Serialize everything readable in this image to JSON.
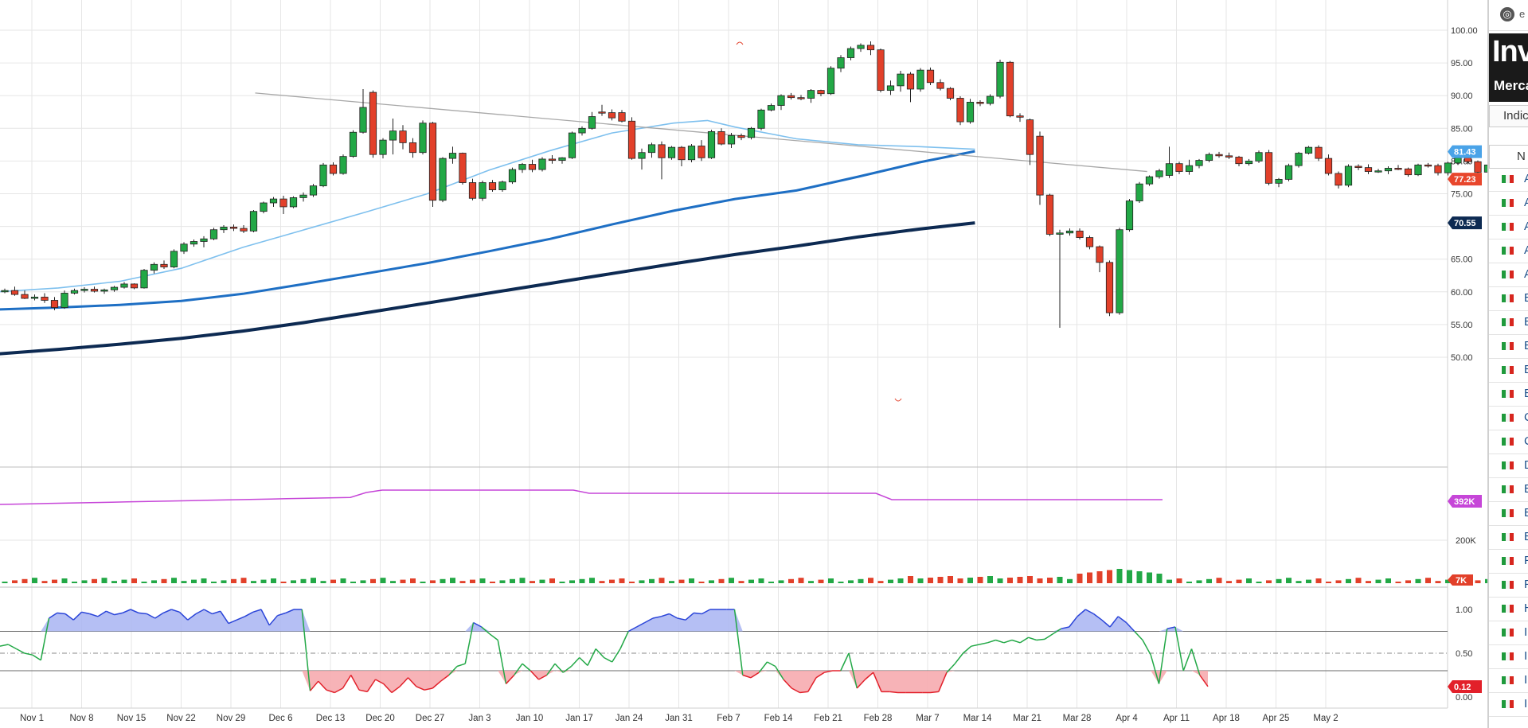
{
  "chart_data": {
    "type": "candlestick",
    "x_tick_labels": [
      "Nov 1",
      "Nov 8",
      "Nov 15",
      "Nov 22",
      "Nov 29",
      "Dec 6",
      "Dec 13",
      "Dec 20",
      "Dec 27",
      "Jan 3",
      "Jan 10",
      "Jan 17",
      "Jan 24",
      "Jan 31",
      "Feb 7",
      "Feb 14",
      "Feb 21",
      "Feb 28",
      "Mar 7",
      "Mar 14",
      "Mar 21",
      "Mar 28",
      "Apr 4",
      "Apr 11",
      "Apr 18",
      "Apr 25",
      "May 2"
    ],
    "price_axis": {
      "ylim": [
        47.5,
        101
      ],
      "ticks": [
        "100.00",
        "95.00",
        "90.00",
        "85.00",
        "80.00",
        "75.00",
        "65.00",
        "60.00",
        "55.00",
        "50.00"
      ]
    },
    "price_badges": [
      {
        "label": "81.43",
        "value": 81.43,
        "color": "#4aa3e8"
      },
      {
        "label": "77.23",
        "value": 77.23,
        "color": "#e8462c"
      },
      {
        "label": "70.55",
        "value": 70.55,
        "color": "#0d2a52"
      }
    ],
    "candles": [
      [
        60.0,
        60.5,
        59.8,
        60.2
      ],
      [
        60.2,
        60.8,
        59.4,
        59.6
      ],
      [
        59.6,
        60.2,
        58.9,
        59.0
      ],
      [
        59.0,
        59.6,
        58.7,
        59.2
      ],
      [
        59.2,
        59.8,
        58.3,
        58.7
      ],
      [
        58.7,
        59.2,
        57.2,
        57.6
      ],
      [
        57.6,
        60.2,
        57.4,
        59.8
      ],
      [
        59.8,
        60.5,
        59.6,
        60.2
      ],
      [
        60.2,
        60.7,
        59.9,
        60.4
      ],
      [
        60.4,
        60.8,
        59.9,
        60.1
      ],
      [
        60.1,
        60.5,
        59.7,
        60.3
      ],
      [
        60.3,
        60.9,
        60.0,
        60.7
      ],
      [
        60.7,
        61.5,
        60.5,
        61.2
      ],
      [
        61.2,
        61.3,
        60.4,
        60.6
      ],
      [
        60.6,
        63.5,
        60.5,
        63.3
      ],
      [
        63.3,
        64.5,
        62.8,
        64.2
      ],
      [
        64.2,
        64.8,
        63.5,
        63.8
      ],
      [
        63.8,
        66.5,
        63.6,
        66.2
      ],
      [
        66.2,
        67.6,
        65.8,
        67.3
      ],
      [
        67.3,
        68.0,
        66.9,
        67.7
      ],
      [
        67.7,
        68.5,
        66.8,
        68.1
      ],
      [
        68.1,
        69.8,
        67.9,
        69.5
      ],
      [
        69.5,
        70.2,
        69.0,
        69.9
      ],
      [
        69.9,
        70.3,
        69.3,
        69.7
      ],
      [
        69.7,
        70.2,
        69.0,
        69.3
      ],
      [
        69.3,
        72.5,
        69.1,
        72.3
      ],
      [
        72.3,
        73.8,
        72.0,
        73.6
      ],
      [
        73.6,
        74.5,
        73.0,
        74.2
      ],
      [
        74.2,
        74.7,
        71.9,
        73.0
      ],
      [
        73.0,
        74.6,
        72.8,
        74.4
      ],
      [
        74.4,
        75.2,
        73.8,
        74.8
      ],
      [
        74.8,
        76.5,
        74.5,
        76.2
      ],
      [
        76.2,
        79.7,
        76.0,
        79.4
      ],
      [
        79.4,
        79.8,
        77.8,
        78.1
      ],
      [
        78.1,
        81.0,
        77.9,
        80.7
      ],
      [
        80.7,
        84.7,
        80.5,
        84.4
      ],
      [
        84.4,
        91.0,
        84.2,
        88.2
      ],
      [
        90.5,
        90.8,
        80.5,
        81.0
      ],
      [
        81.0,
        83.5,
        80.4,
        83.2
      ],
      [
        83.2,
        86.5,
        81.0,
        84.6
      ],
      [
        84.6,
        85.5,
        81.8,
        82.8
      ],
      [
        82.8,
        83.5,
        80.5,
        81.3
      ],
      [
        81.3,
        86.2,
        81.0,
        85.8
      ],
      [
        85.8,
        86.0,
        73.0,
        74.0
      ],
      [
        74.0,
        80.6,
        73.7,
        80.4
      ],
      [
        80.4,
        82.2,
        79.6,
        81.2
      ],
      [
        81.2,
        81.3,
        76.4,
        76.7
      ],
      [
        76.7,
        77.3,
        74.0,
        74.3
      ],
      [
        74.3,
        77.0,
        73.9,
        76.7
      ],
      [
        76.7,
        77.1,
        75.3,
        75.6
      ],
      [
        75.6,
        77.0,
        75.3,
        76.8
      ],
      [
        76.8,
        79.0,
        76.5,
        78.7
      ],
      [
        78.7,
        79.7,
        78.2,
        79.5
      ],
      [
        79.5,
        80.2,
        78.3,
        78.7
      ],
      [
        78.7,
        80.6,
        78.4,
        80.3
      ],
      [
        80.3,
        80.9,
        79.6,
        80.1
      ],
      [
        80.1,
        80.6,
        79.6,
        80.5
      ],
      [
        80.5,
        84.5,
        80.3,
        84.3
      ],
      [
        84.3,
        85.3,
        83.9,
        85.0
      ],
      [
        85.0,
        87.5,
        84.8,
        86.8
      ],
      [
        87.5,
        88.6,
        86.9,
        87.4
      ],
      [
        87.4,
        87.9,
        86.2,
        86.6
      ],
      [
        87.4,
        87.8,
        85.9,
        86.1
      ],
      [
        86.1,
        86.7,
        80.2,
        80.4
      ],
      [
        80.4,
        81.9,
        78.7,
        81.3
      ],
      [
        81.3,
        82.8,
        80.5,
        82.5
      ],
      [
        82.5,
        83.0,
        77.2,
        80.5
      ],
      [
        80.5,
        82.3,
        80.2,
        82.1
      ],
      [
        82.1,
        82.3,
        79.2,
        80.2
      ],
      [
        80.2,
        82.6,
        79.8,
        82.3
      ],
      [
        82.3,
        83.2,
        80.0,
        80.5
      ],
      [
        80.5,
        84.8,
        80.3,
        84.5
      ],
      [
        84.5,
        85.0,
        82.4,
        82.6
      ],
      [
        82.6,
        84.3,
        82.0,
        83.9
      ],
      [
        83.9,
        84.2,
        83.2,
        83.6
      ],
      [
        83.6,
        85.2,
        83.3,
        85.0
      ],
      [
        85.0,
        88.0,
        84.7,
        87.8
      ],
      [
        87.8,
        88.8,
        87.6,
        88.5
      ],
      [
        88.5,
        90.2,
        87.8,
        90.0
      ],
      [
        90.0,
        90.4,
        89.4,
        89.7
      ],
      [
        89.7,
        90.1,
        89.3,
        89.6
      ],
      [
        89.6,
        91.0,
        88.9,
        90.8
      ],
      [
        90.8,
        90.9,
        89.9,
        90.3
      ],
      [
        90.3,
        94.5,
        90.1,
        94.2
      ],
      [
        94.2,
        96.2,
        93.6,
        95.8
      ],
      [
        95.8,
        97.5,
        95.4,
        97.2
      ],
      [
        97.2,
        98.0,
        96.7,
        97.7
      ],
      [
        97.7,
        98.3,
        96.2,
        97.0
      ],
      [
        97.0,
        97.2,
        90.5,
        90.8
      ],
      [
        90.8,
        92.3,
        90.1,
        91.5
      ],
      [
        91.5,
        93.8,
        90.6,
        93.3
      ],
      [
        93.3,
        93.6,
        89.0,
        91.0
      ],
      [
        91.0,
        94.2,
        90.6,
        93.9
      ],
      [
        93.9,
        94.3,
        91.6,
        92.0
      ],
      [
        92.0,
        92.5,
        90.8,
        91.1
      ],
      [
        91.1,
        91.3,
        89.3,
        89.6
      ],
      [
        89.6,
        89.9,
        85.5,
        86.0
      ],
      [
        86.0,
        89.5,
        85.7,
        89.0
      ],
      [
        89.0,
        89.3,
        88.4,
        88.8
      ],
      [
        88.8,
        90.2,
        88.5,
        89.9
      ],
      [
        89.9,
        95.5,
        89.6,
        95.1
      ],
      [
        95.1,
        95.3,
        86.7,
        86.9
      ],
      [
        86.9,
        87.3,
        86.0,
        86.7
      ],
      [
        86.3,
        86.5,
        79.4,
        81.0
      ],
      [
        83.8,
        84.5,
        73.3,
        74.8
      ],
      [
        74.8,
        75.0,
        68.5,
        68.8
      ],
      [
        68.8,
        69.5,
        54.5,
        69.0
      ],
      [
        69.0,
        69.7,
        68.6,
        69.3
      ],
      [
        69.3,
        69.7,
        68.0,
        68.3
      ],
      [
        68.3,
        68.6,
        66.5,
        66.9
      ],
      [
        66.9,
        67.1,
        63.0,
        64.5
      ],
      [
        64.5,
        64.8,
        56.3,
        56.8
      ],
      [
        56.8,
        69.8,
        56.5,
        69.5
      ],
      [
        69.5,
        74.2,
        69.2,
        73.9
      ],
      [
        73.9,
        76.8,
        73.6,
        76.5
      ],
      [
        76.5,
        77.8,
        76.2,
        77.6
      ],
      [
        77.6,
        78.8,
        77.3,
        78.5
      ],
      [
        77.8,
        82.2,
        77.4,
        79.6
      ],
      [
        79.6,
        79.9,
        78.0,
        78.4
      ],
      [
        78.4,
        80.2,
        77.9,
        79.3
      ],
      [
        79.3,
        80.3,
        78.9,
        80.1
      ],
      [
        80.1,
        81.3,
        79.8,
        81.0
      ],
      [
        81.0,
        81.4,
        80.5,
        80.8
      ],
      [
        80.8,
        81.3,
        80.3,
        80.6
      ],
      [
        80.6,
        80.8,
        79.2,
        79.6
      ],
      [
        79.6,
        80.3,
        79.3,
        80.0
      ],
      [
        80.0,
        81.6,
        79.7,
        81.3
      ],
      [
        81.3,
        81.7,
        76.3,
        76.6
      ],
      [
        76.6,
        77.4,
        76.0,
        77.2
      ],
      [
        77.2,
        79.6,
        76.9,
        79.3
      ],
      [
        79.3,
        81.4,
        79.0,
        81.2
      ],
      [
        81.2,
        82.3,
        81.0,
        82.1
      ],
      [
        82.1,
        82.4,
        80.0,
        80.4
      ],
      [
        80.4,
        81.0,
        77.8,
        78.1
      ],
      [
        78.1,
        78.4,
        75.8,
        76.3
      ],
      [
        76.3,
        79.5,
        76.0,
        79.2
      ],
      [
        79.2,
        79.5,
        78.6,
        79.0
      ],
      [
        79.0,
        79.5,
        78.0,
        78.4
      ],
      [
        78.4,
        78.8,
        78.2,
        78.5
      ],
      [
        78.5,
        79.2,
        78.0,
        78.9
      ],
      [
        78.9,
        79.4,
        78.6,
        78.8
      ],
      [
        78.8,
        79.0,
        77.6,
        77.9
      ],
      [
        77.9,
        79.6,
        77.7,
        79.4
      ],
      [
        79.4,
        79.7,
        79.0,
        79.3
      ],
      [
        79.3,
        79.6,
        77.8,
        78.2
      ],
      [
        78.2,
        79.9,
        77.8,
        79.7
      ],
      [
        79.7,
        80.8,
        79.4,
        80.5
      ],
      [
        80.5,
        80.7,
        79.5,
        79.9
      ],
      [
        79.9,
        80.1,
        77.9,
        78.3
      ],
      [
        78.3,
        79.7,
        77.6,
        79.4
      ],
      [
        79.4,
        79.5,
        77.0,
        77.23
      ]
    ],
    "highs_marked": [
      {
        "value": 98.3
      },
      {
        "value": 54.5
      }
    ],
    "moving_averages": [
      {
        "color": "#7ec0ee",
        "values": [
          [
            0,
            60.0
          ],
          [
            20,
            60.6
          ],
          [
            40,
            61.6
          ],
          [
            60,
            63.6
          ],
          [
            80,
            66.8
          ],
          [
            100,
            69.5
          ],
          [
            120,
            72.2
          ],
          [
            140,
            75.0
          ],
          [
            160,
            78.6
          ],
          [
            180,
            81.6
          ],
          [
            200,
            84.3
          ],
          [
            220,
            85.8
          ],
          [
            231,
            86.2
          ],
          [
            240,
            85.2
          ],
          [
            260,
            83.4
          ],
          [
            280,
            82.5
          ],
          [
            300,
            82.2
          ],
          [
            318,
            81.8
          ]
        ]
      },
      {
        "color": "#1e6fc4",
        "values": [
          [
            0,
            57.3
          ],
          [
            20,
            57.6
          ],
          [
            40,
            58.0
          ],
          [
            60,
            58.6
          ],
          [
            80,
            59.7
          ],
          [
            100,
            61.2
          ],
          [
            120,
            62.8
          ],
          [
            140,
            64.4
          ],
          [
            160,
            66.2
          ],
          [
            180,
            68.1
          ],
          [
            200,
            70.3
          ],
          [
            220,
            72.4
          ],
          [
            240,
            74.2
          ],
          [
            260,
            75.5
          ],
          [
            280,
            77.6
          ],
          [
            300,
            79.8
          ],
          [
            318,
            81.5
          ]
        ]
      },
      {
        "color": "#0d2a52",
        "values": [
          [
            0,
            50.5
          ],
          [
            20,
            51.2
          ],
          [
            40,
            52.0
          ],
          [
            60,
            52.9
          ],
          [
            80,
            54.0
          ],
          [
            100,
            55.3
          ],
          [
            120,
            56.8
          ],
          [
            140,
            58.3
          ],
          [
            160,
            59.8
          ],
          [
            180,
            61.3
          ],
          [
            200,
            62.8
          ],
          [
            220,
            64.3
          ],
          [
            240,
            65.7
          ],
          [
            260,
            67.0
          ],
          [
            280,
            68.4
          ],
          [
            300,
            69.6
          ],
          [
            318,
            70.55
          ]
        ]
      }
    ],
    "trendline": [
      [
        84,
        90.4
      ],
      [
        374,
        78.4
      ]
    ],
    "volume": {
      "ticks": [
        "200K"
      ],
      "badge_top": "392K",
      "badge_bottom": "7K"
    },
    "oscillator": {
      "ticks": [
        "1.00",
        "0.50",
        "0.00"
      ],
      "badge": "0.12",
      "upper": 0.75,
      "lower": 0.3
    }
  },
  "side_panel": {
    "top_char": "e",
    "brand": "Inve",
    "subtitle": "Merca",
    "tab": "Indic",
    "column_header": "N",
    "rows": [
      "A",
      "A",
      "A",
      "A",
      "A",
      "E",
      "E",
      "E",
      "E",
      "E",
      "C",
      "C",
      "D",
      "E",
      "E",
      "E",
      "F",
      "F",
      "H",
      "I",
      "I",
      "I",
      "I"
    ]
  }
}
